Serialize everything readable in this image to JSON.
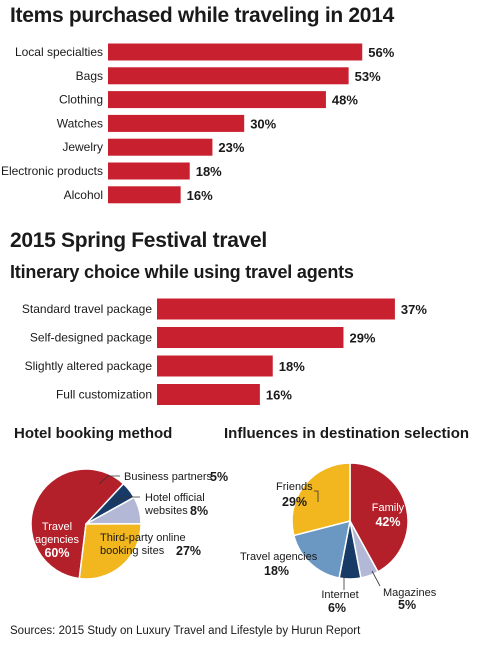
{
  "colors": {
    "bar": "#c8202e",
    "dark_red": "#b4202a",
    "gold": "#f2b71e",
    "blue": "#6b97c3",
    "navy": "#173a66",
    "lavender": "#b3b8d6"
  },
  "chart_data": [
    {
      "type": "bar",
      "orientation": "horizontal",
      "title": "Items purchased while traveling in 2014",
      "categories": [
        "Local specialties",
        "Bags",
        "Clothing",
        "Watches",
        "Jewelry",
        "Electronic products",
        "Alcohol"
      ],
      "values": [
        56,
        53,
        48,
        30,
        23,
        18,
        16
      ],
      "value_labels": [
        "56%",
        "53%",
        "48%",
        "30%",
        "23%",
        "18%",
        "16%"
      ],
      "unit": "%"
    },
    {
      "type": "bar",
      "orientation": "horizontal",
      "section_title": "2015 Spring Festival travel",
      "title": "Itinerary choice while using travel agents",
      "categories": [
        "Standard travel package",
        "Self-designed package",
        "Slightly altered package",
        "Full customization"
      ],
      "values": [
        37,
        29,
        18,
        16
      ],
      "value_labels": [
        "37%",
        "29%",
        "18%",
        "16%"
      ],
      "unit": "%"
    },
    {
      "type": "pie",
      "title": "Hotel booking method",
      "slices": [
        {
          "name": "Travel agencies",
          "value": 60,
          "value_label": "60%",
          "color": "#b4202a"
        },
        {
          "name": "Business partners",
          "value": 5,
          "value_label": "5%",
          "color": "#173a66"
        },
        {
          "name": "Hotel official websites",
          "name_lines": [
            "Hotel official",
            "websites"
          ],
          "value": 8,
          "value_label": "8%",
          "color": "#b3b8d6"
        },
        {
          "name": "Third-party online booking sites",
          "name_lines": [
            "Third-party online",
            "booking sites"
          ],
          "value": 27,
          "value_label": "27%",
          "color": "#f2b71e"
        }
      ]
    },
    {
      "type": "pie",
      "title": "Influences in destination selection",
      "slices": [
        {
          "name": "Family",
          "value": 42,
          "value_label": "42%",
          "color": "#b4202a"
        },
        {
          "name": "Magazines",
          "value": 5,
          "value_label": "5%",
          "color": "#b3b8d6"
        },
        {
          "name": "Internet",
          "value": 6,
          "value_label": "6%",
          "color": "#173a66"
        },
        {
          "name": "Travel agencies",
          "value": 18,
          "value_label": "18%",
          "color": "#6b97c3"
        },
        {
          "name": "Friends",
          "value": 29,
          "value_label": "29%",
          "color": "#f2b71e"
        }
      ]
    }
  ],
  "source": "Sources: 2015 Study on Luxury Travel and Lifestyle by Hurun Report"
}
